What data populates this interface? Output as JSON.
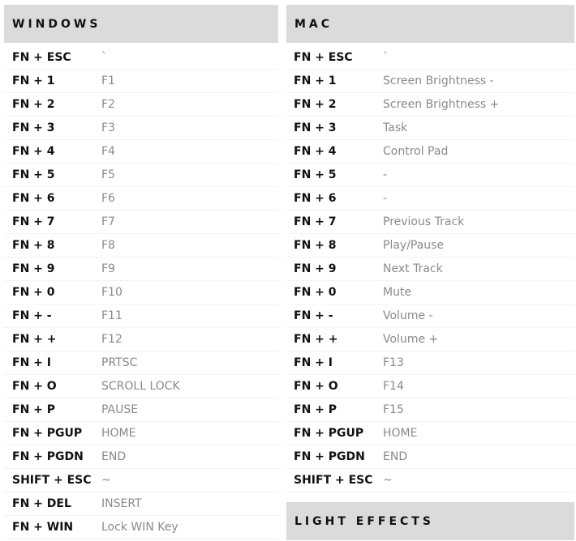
{
  "windows": {
    "title": "WINDOWS",
    "rows": [
      {
        "key": "FN + ESC",
        "value": "`"
      },
      {
        "key": "FN + 1",
        "value": "F1"
      },
      {
        "key": "FN + 2",
        "value": "F2"
      },
      {
        "key": "FN + 3",
        "value": "F3"
      },
      {
        "key": "FN + 4",
        "value": "F4"
      },
      {
        "key": "FN + 5",
        "value": "F5"
      },
      {
        "key": "FN + 6",
        "value": "F6"
      },
      {
        "key": "FN + 7",
        "value": "F7"
      },
      {
        "key": "FN + 8",
        "value": "F8"
      },
      {
        "key": "FN + 9",
        "value": "F9"
      },
      {
        "key": "FN + 0",
        "value": "F10"
      },
      {
        "key": "FN + -",
        "value": "F11"
      },
      {
        "key": "FN + +",
        "value": "F12"
      },
      {
        "key": "FN + I",
        "value": "PRTSC"
      },
      {
        "key": "FN + O",
        "value": "SCROLL LOCK"
      },
      {
        "key": "FN + P",
        "value": "PAUSE"
      },
      {
        "key": "FN + PGUP",
        "value": "HOME"
      },
      {
        "key": "FN + PGDN",
        "value": "END"
      },
      {
        "key": "SHIFT + ESC",
        "value": "~"
      },
      {
        "key": "FN + DEL",
        "value": "INSERT"
      },
      {
        "key": "FN + WIN",
        "value": "Lock WIN Key"
      }
    ]
  },
  "mac": {
    "title": "MAC",
    "rows": [
      {
        "key": "FN + ESC",
        "value": "`"
      },
      {
        "key": "FN + 1",
        "value": "Screen Brightness -"
      },
      {
        "key": "FN + 2",
        "value": "Screen Brightness +"
      },
      {
        "key": "FN + 3",
        "value": "Task"
      },
      {
        "key": "FN + 4",
        "value": "Control Pad"
      },
      {
        "key": "FN + 5",
        "value": "-"
      },
      {
        "key": "FN + 6",
        "value": "-"
      },
      {
        "key": "FN + 7",
        "value": "Previous Track"
      },
      {
        "key": "FN + 8",
        "value": "Play/Pause"
      },
      {
        "key": "FN + 9",
        "value": "Next Track"
      },
      {
        "key": "FN + 0",
        "value": "Mute"
      },
      {
        "key": "FN + -",
        "value": "Volume -"
      },
      {
        "key": "FN + +",
        "value": "Volume +"
      },
      {
        "key": "FN + I",
        "value": "F13"
      },
      {
        "key": "FN + O",
        "value": "F14"
      },
      {
        "key": "FN + P",
        "value": "F15"
      },
      {
        "key": "FN + PGUP",
        "value": "HOME"
      },
      {
        "key": "FN + PGDN",
        "value": "END"
      },
      {
        "key": "SHIFT + ESC",
        "value": "~"
      }
    ]
  },
  "light_effects": {
    "title": "LIGHT EFFECTS"
  }
}
